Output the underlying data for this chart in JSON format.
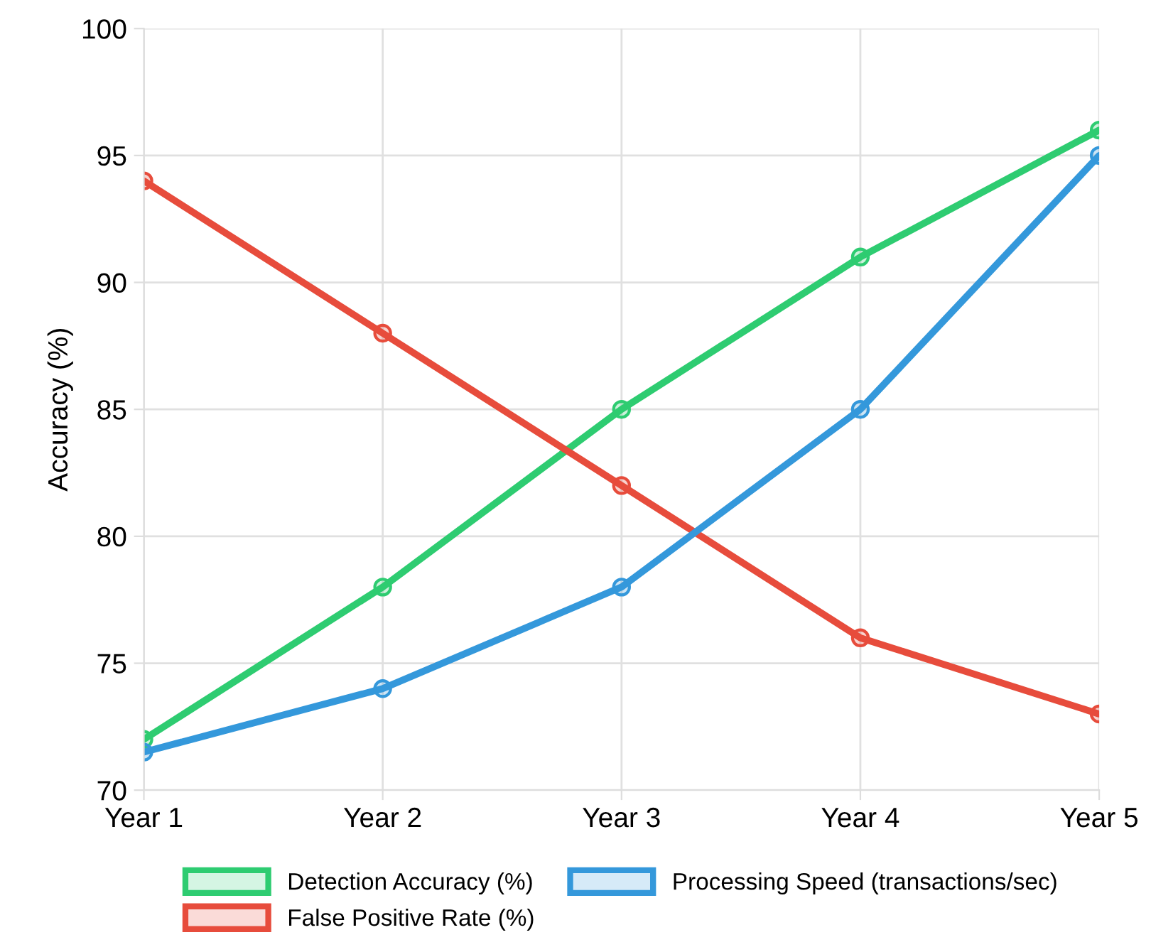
{
  "chart_data": {
    "type": "line",
    "ylabel": "Accuracy (%)",
    "categories": [
      "Year 1",
      "Year 2",
      "Year 3",
      "Year 4",
      "Year 5"
    ],
    "series": [
      {
        "name": "Detection Accuracy (%)",
        "color": "#2ecc71",
        "values": [
          72,
          78,
          85,
          91,
          96
        ]
      },
      {
        "name": "False Positive Rate (%)",
        "color": "#e74c3c",
        "values": [
          94,
          88,
          82,
          76,
          73
        ]
      },
      {
        "name": "Processing Speed (transactions/sec)",
        "color": "#3498db",
        "values": [
          71.5,
          74,
          78,
          85,
          95
        ]
      }
    ],
    "ylim": [
      70,
      100
    ],
    "yticks": [
      70,
      75,
      80,
      85,
      90,
      95,
      100
    ],
    "grid": true,
    "legend": "bottom",
    "marker": "circle",
    "line_style": "solid"
  }
}
